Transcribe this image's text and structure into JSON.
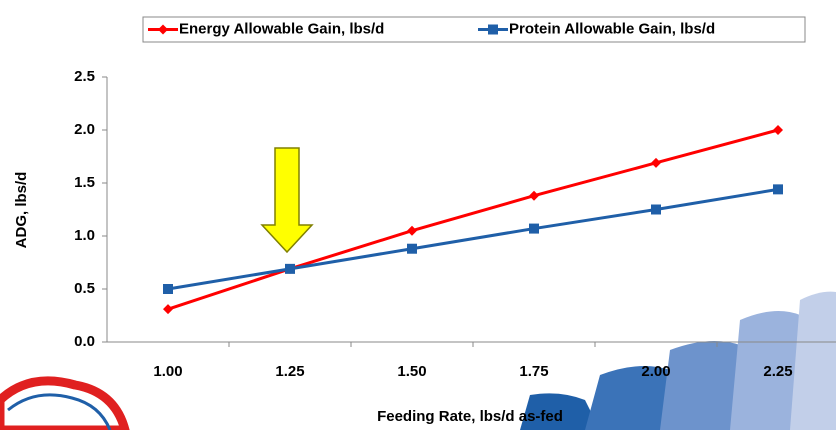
{
  "chart_data": {
    "type": "line",
    "x_label": "Feeding Rate, lbs/d as-fed",
    "y_label": "ADG, lbs/d",
    "categories": [
      "1.00",
      "1.25",
      "1.50",
      "1.75",
      "2.00",
      "2.25"
    ],
    "series": [
      {
        "name": "Energy Allowable Gain, lbs/d",
        "color": "#ff0000",
        "marker": "diamond",
        "values": [
          0.31,
          0.69,
          1.05,
          1.38,
          1.69,
          2.0
        ]
      },
      {
        "name": "Protein Allowable Gain, lbs/d",
        "color": "#1f5fa8",
        "marker": "square",
        "values": [
          0.5,
          0.69,
          0.88,
          1.07,
          1.25,
          1.44
        ]
      }
    ],
    "ylim": [
      0,
      2.5
    ],
    "yticks": [
      {
        "value": 0,
        "label": "0.0"
      },
      {
        "value": 0.5,
        "label": "0.5"
      },
      {
        "value": 1,
        "label": "1.0"
      },
      {
        "value": 1.5,
        "label": "1.5"
      },
      {
        "value": 2,
        "label": "2.0"
      },
      {
        "value": 2.5,
        "label": "2.5"
      }
    ],
    "grid": false,
    "legend": "top"
  }
}
